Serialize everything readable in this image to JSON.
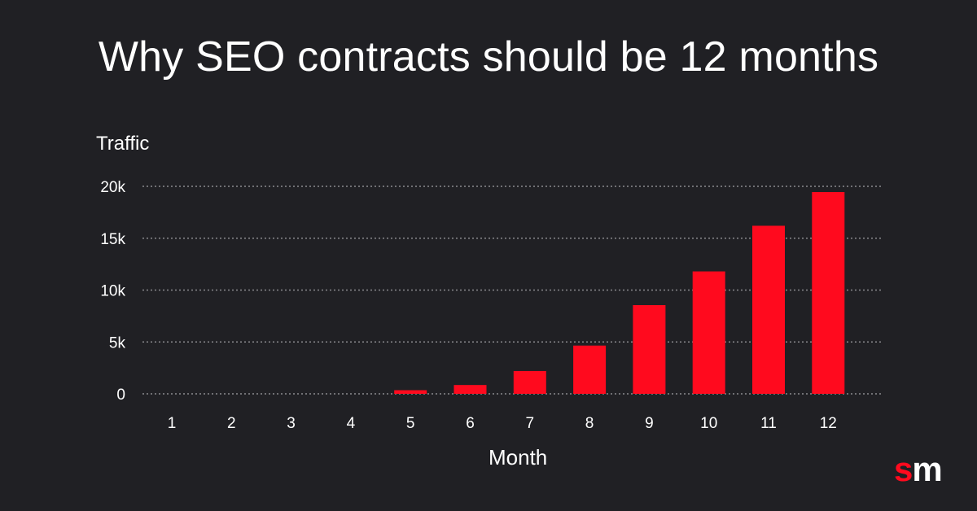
{
  "chart_data": {
    "type": "bar",
    "title": "Why SEO contracts should be 12 months",
    "xlabel": "Month",
    "ylabel": "Traffic",
    "categories": [
      "1",
      "2",
      "3",
      "4",
      "5",
      "6",
      "7",
      "8",
      "9",
      "10",
      "11",
      "12"
    ],
    "values": [
      0,
      0,
      0,
      0,
      350,
      850,
      2200,
      4650,
      8550,
      11800,
      16200,
      19450
    ],
    "ylim": [
      0,
      20000
    ],
    "yticks": [
      0,
      5000,
      10000,
      15000,
      20000
    ],
    "ytick_labels": [
      "0",
      "5k",
      "10k",
      "15k",
      "20k"
    ],
    "grid": true,
    "bar_color": "#ff0a1e",
    "grid_color": "#8a8a8e"
  },
  "logo": {
    "s": "s",
    "m": "m"
  }
}
